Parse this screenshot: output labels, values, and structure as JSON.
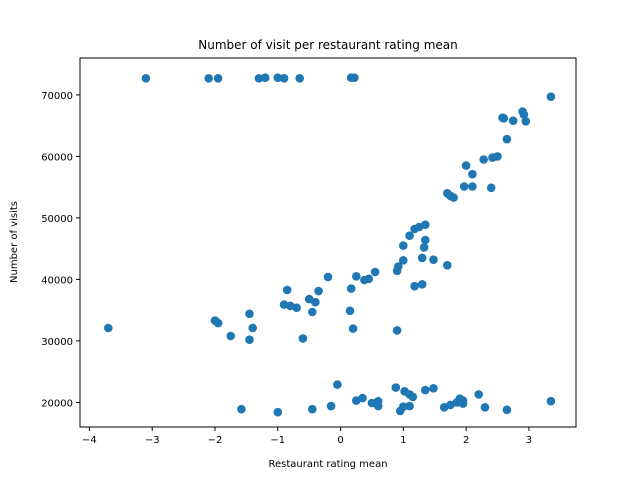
{
  "chart_data": {
    "type": "scatter",
    "title": "Number of visit per restaurant rating mean",
    "xlabel": "Restaurant rating mean",
    "ylabel": "Number of visits",
    "xlim": [
      -4.15,
      3.75
    ],
    "ylim": [
      16000,
      76000
    ],
    "xticks": [
      -4,
      -3,
      -2,
      -1,
      0,
      1,
      2,
      3
    ],
    "xtick_labels": [
      "−4",
      "−3",
      "−2",
      "−1",
      "0",
      "1",
      "2",
      "3"
    ],
    "yticks": [
      20000,
      30000,
      40000,
      50000,
      60000,
      70000
    ],
    "ytick_labels": [
      "20000",
      "30000",
      "40000",
      "50000",
      "60000",
      "70000"
    ],
    "grid": false,
    "marker_color": "#1f77b4",
    "points": [
      {
        "x": -3.1,
        "y": 72700
      },
      {
        "x": -2.1,
        "y": 72700
      },
      {
        "x": -1.95,
        "y": 72700
      },
      {
        "x": -1.3,
        "y": 72700
      },
      {
        "x": -1.2,
        "y": 72800
      },
      {
        "x": -1.0,
        "y": 72800
      },
      {
        "x": -0.9,
        "y": 72700
      },
      {
        "x": -0.65,
        "y": 72700
      },
      {
        "x": 0.17,
        "y": 72800
      },
      {
        "x": 0.22,
        "y": 72800
      },
      {
        "x": -3.7,
        "y": 32100
      },
      {
        "x": -2.0,
        "y": 33300
      },
      {
        "x": -1.95,
        "y": 32900
      },
      {
        "x": -1.75,
        "y": 30800
      },
      {
        "x": -1.45,
        "y": 34400
      },
      {
        "x": -1.4,
        "y": 32100
      },
      {
        "x": -1.45,
        "y": 30200
      },
      {
        "x": -0.9,
        "y": 35900
      },
      {
        "x": -0.85,
        "y": 38300
      },
      {
        "x": -0.8,
        "y": 35700
      },
      {
        "x": -0.7,
        "y": 35400
      },
      {
        "x": -0.6,
        "y": 30400
      },
      {
        "x": -0.5,
        "y": 36800
      },
      {
        "x": -0.45,
        "y": 34700
      },
      {
        "x": -0.4,
        "y": 36300
      },
      {
        "x": -0.35,
        "y": 38100
      },
      {
        "x": -0.2,
        "y": 40400
      },
      {
        "x": 0.15,
        "y": 34900
      },
      {
        "x": 0.2,
        "y": 32000
      },
      {
        "x": 0.17,
        "y": 38500
      },
      {
        "x": 0.25,
        "y": 40500
      },
      {
        "x": 0.38,
        "y": 39900
      },
      {
        "x": 0.45,
        "y": 40100
      },
      {
        "x": 0.55,
        "y": 41200
      },
      {
        "x": 0.9,
        "y": 41400
      },
      {
        "x": 0.92,
        "y": 42100
      },
      {
        "x": 0.9,
        "y": 31700
      },
      {
        "x": 1.0,
        "y": 43100
      },
      {
        "x": 1.0,
        "y": 45500
      },
      {
        "x": 1.1,
        "y": 47100
      },
      {
        "x": 1.18,
        "y": 48200
      },
      {
        "x": 1.25,
        "y": 48500
      },
      {
        "x": 1.35,
        "y": 48900
      },
      {
        "x": 1.18,
        "y": 38900
      },
      {
        "x": 1.3,
        "y": 43500
      },
      {
        "x": 1.33,
        "y": 45200
      },
      {
        "x": 1.35,
        "y": 46400
      },
      {
        "x": 1.3,
        "y": 39200
      },
      {
        "x": 1.48,
        "y": 43200
      },
      {
        "x": 1.7,
        "y": 42300
      },
      {
        "x": 1.7,
        "y": 54000
      },
      {
        "x": 1.75,
        "y": 53600
      },
      {
        "x": 1.8,
        "y": 53300
      },
      {
        "x": 1.97,
        "y": 55100
      },
      {
        "x": 2.0,
        "y": 58500
      },
      {
        "x": 2.1,
        "y": 57100
      },
      {
        "x": 2.1,
        "y": 55100
      },
      {
        "x": 2.28,
        "y": 59500
      },
      {
        "x": 2.4,
        "y": 54900
      },
      {
        "x": 2.42,
        "y": 59800
      },
      {
        "x": 2.5,
        "y": 60000
      },
      {
        "x": 2.58,
        "y": 66300
      },
      {
        "x": 2.6,
        "y": 66200
      },
      {
        "x": 2.65,
        "y": 62800
      },
      {
        "x": 2.75,
        "y": 65800
      },
      {
        "x": 2.9,
        "y": 67300
      },
      {
        "x": 2.92,
        "y": 66800
      },
      {
        "x": 2.95,
        "y": 65700
      },
      {
        "x": 3.35,
        "y": 69700
      },
      {
        "x": -1.58,
        "y": 18900
      },
      {
        "x": -1.0,
        "y": 18400
      },
      {
        "x": -0.45,
        "y": 18900
      },
      {
        "x": -0.15,
        "y": 19400
      },
      {
        "x": -0.05,
        "y": 22900
      },
      {
        "x": 0.25,
        "y": 20300
      },
      {
        "x": 0.35,
        "y": 20700
      },
      {
        "x": 0.5,
        "y": 19900
      },
      {
        "x": 0.6,
        "y": 20200
      },
      {
        "x": 0.6,
        "y": 19400
      },
      {
        "x": 0.88,
        "y": 22400
      },
      {
        "x": 0.95,
        "y": 18600
      },
      {
        "x": 1.0,
        "y": 19300
      },
      {
        "x": 1.02,
        "y": 21800
      },
      {
        "x": 1.1,
        "y": 21300
      },
      {
        "x": 1.15,
        "y": 20900
      },
      {
        "x": 1.1,
        "y": 19400
      },
      {
        "x": 1.35,
        "y": 22000
      },
      {
        "x": 1.48,
        "y": 22300
      },
      {
        "x": 1.65,
        "y": 19200
      },
      {
        "x": 1.75,
        "y": 19600
      },
      {
        "x": 1.85,
        "y": 20000
      },
      {
        "x": 1.9,
        "y": 20600
      },
      {
        "x": 1.95,
        "y": 20300
      },
      {
        "x": 1.95,
        "y": 19800
      },
      {
        "x": 2.2,
        "y": 21300
      },
      {
        "x": 2.3,
        "y": 19200
      },
      {
        "x": 2.65,
        "y": 18800
      },
      {
        "x": 3.35,
        "y": 20200
      }
    ]
  }
}
